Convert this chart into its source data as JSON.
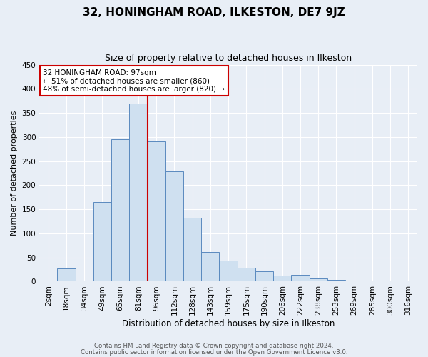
{
  "title": "32, HONINGHAM ROAD, ILKESTON, DE7 9JZ",
  "subtitle": "Size of property relative to detached houses in Ilkeston",
  "xlabel": "Distribution of detached houses by size in Ilkeston",
  "ylabel": "Number of detached properties",
  "bar_labels": [
    "2sqm",
    "18sqm",
    "34sqm",
    "49sqm",
    "65sqm",
    "81sqm",
    "96sqm",
    "112sqm",
    "128sqm",
    "143sqm",
    "159sqm",
    "175sqm",
    "190sqm",
    "206sqm",
    "222sqm",
    "238sqm",
    "253sqm",
    "269sqm",
    "285sqm",
    "300sqm",
    "316sqm"
  ],
  "bar_heights": [
    0,
    27,
    0,
    165,
    296,
    370,
    291,
    228,
    133,
    62,
    44,
    29,
    22,
    13,
    14,
    6,
    3,
    0,
    0,
    0,
    0
  ],
  "bar_color": "#cfe0f0",
  "bar_edge_color": "#5a8abf",
  "property_line_color": "#cc0000",
  "property_line_idx": 6,
  "annotation_title": "32 HONINGHAM ROAD: 97sqm",
  "annotation_line1": "← 51% of detached houses are smaller (860)",
  "annotation_line2": "48% of semi-detached houses are larger (820) →",
  "annotation_box_edge_color": "#cc0000",
  "annotation_box_face_color": "#ffffff",
  "ylim": [
    0,
    450
  ],
  "yticks": [
    0,
    50,
    100,
    150,
    200,
    250,
    300,
    350,
    400,
    450
  ],
  "footer_line1": "Contains HM Land Registry data © Crown copyright and database right 2024.",
  "footer_line2": "Contains public sector information licensed under the Open Government Licence v3.0.",
  "background_color": "#e8eef6",
  "plot_background_color": "#e8eef6",
  "grid_color": "#ffffff",
  "title_fontsize": 11,
  "subtitle_fontsize": 9,
  "ylabel_fontsize": 8,
  "xlabel_fontsize": 8.5,
  "tick_fontsize": 7.5,
  "footer_fontsize": 6.2
}
